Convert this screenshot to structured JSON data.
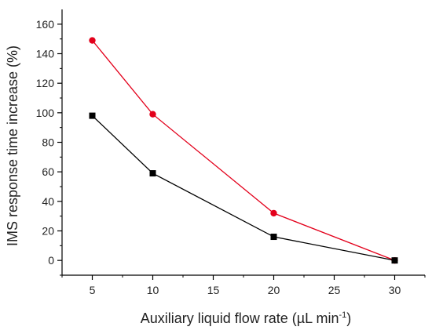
{
  "chart_data": {
    "type": "line",
    "title": "",
    "xlabel": "Auxiliary liquid flow rate (µL min",
    "xlabel_sup": "-1",
    "xlabel_close": ")",
    "ylabel": "IMS response time increase (%)",
    "xlim": [
      2.5,
      32.5
    ],
    "ylim": [
      -10,
      170
    ],
    "xticks": [
      5,
      10,
      15,
      20,
      25,
      30
    ],
    "yticks": [
      0,
      20,
      40,
      60,
      80,
      100,
      120,
      140,
      160
    ],
    "grid": false,
    "legend": "none",
    "series": [
      {
        "marker": "circle",
        "color": "#e3001b",
        "x": [
          5,
          10,
          20,
          30
        ],
        "y": [
          149,
          99,
          32,
          0
        ]
      },
      {
        "marker": "square",
        "color": "#000000",
        "x": [
          5,
          10,
          20,
          30
        ],
        "y": [
          98,
          59,
          16,
          0
        ]
      }
    ]
  }
}
